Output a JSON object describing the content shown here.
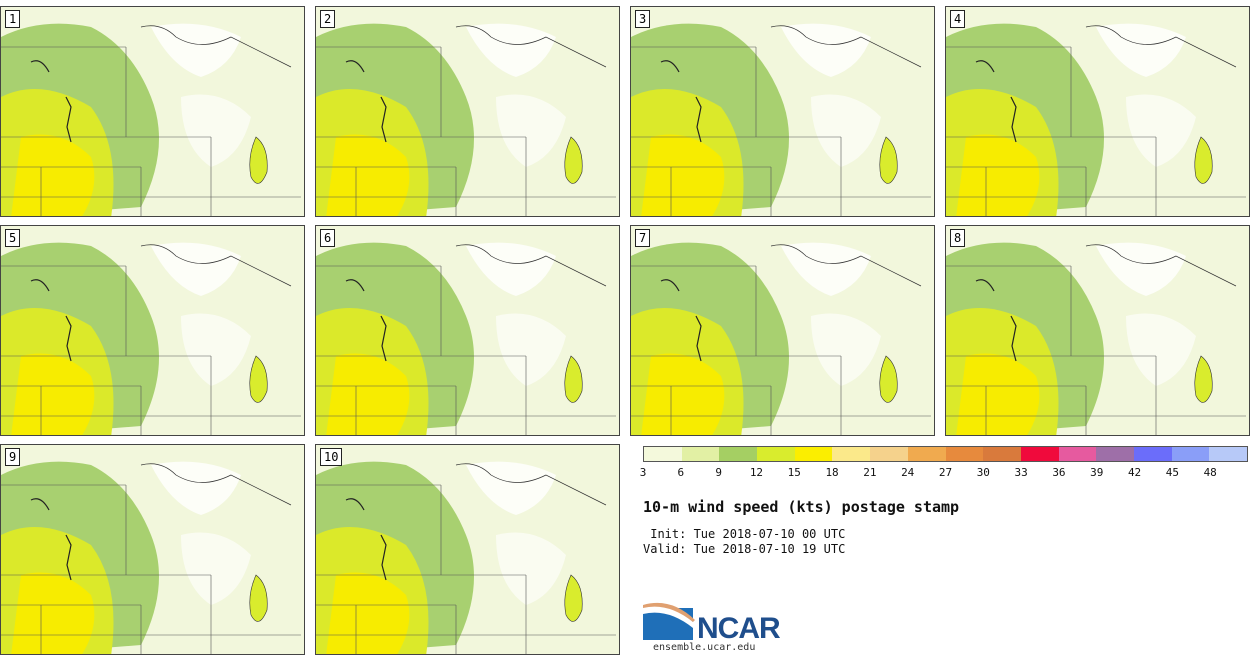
{
  "panels": [
    {
      "label": "1"
    },
    {
      "label": "2"
    },
    {
      "label": "3"
    },
    {
      "label": "4"
    },
    {
      "label": "5"
    },
    {
      "label": "6"
    },
    {
      "label": "7"
    },
    {
      "label": "8"
    },
    {
      "label": "9"
    },
    {
      "label": "10"
    }
  ],
  "colorbar": {
    "colors": [
      "#f4f9dc",
      "#e2f0a4",
      "#a5cf63",
      "#d9ec2d",
      "#fbee00",
      "#fbe98a",
      "#f5d28c",
      "#f0aa4f",
      "#e78a3d",
      "#d97a3c",
      "#f00a3c",
      "#e65a9f",
      "#9e6fa8",
      "#6b6dfa",
      "#8a9ef8",
      "#b7c9f8"
    ],
    "ticks": [
      "3",
      "6",
      "9",
      "12",
      "15",
      "18",
      "21",
      "24",
      "27",
      "30",
      "33",
      "36",
      "39",
      "42",
      "45",
      "48"
    ]
  },
  "title": "10-m wind speed (kts) postage stamp",
  "init": " Init: Tue 2018-07-10 00 UTC",
  "valid": "Valid: Tue 2018-07-10 19 UTC",
  "logo": {
    "name": "NCAR",
    "site": "ensemble.ucar.edu"
  }
}
